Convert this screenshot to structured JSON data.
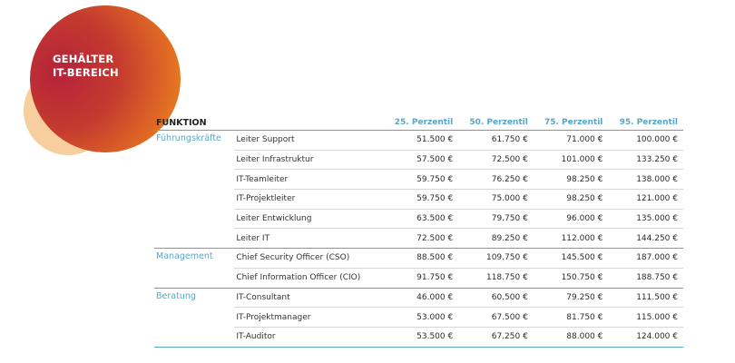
{
  "header": {
    "title_line1": "GEHÄLTER",
    "title_line2": "IT-BEREICH"
  },
  "table": {
    "columns": [
      "FUNKTION",
      "25. Perzentil",
      "50. Perzentil",
      "75. Perzentil",
      "95. Perzentil"
    ],
    "groups": [
      {
        "category": "Führungskräfte",
        "rows": [
          {
            "name": "Leiter Support",
            "values": [
              "51.500 €",
              "61.750 €",
              "71.000 €",
              "100.000 €"
            ]
          },
          {
            "name": "Leiter Infrastruktur",
            "values": [
              "57.500 €",
              "72.500 €",
              "101.000 €",
              "133.250 €"
            ]
          },
          {
            "name": "IT-Teamleiter",
            "values": [
              "59.750 €",
              "76.250 €",
              "98.250 €",
              "138.000 €"
            ]
          },
          {
            "name": "IT-Projektleiter",
            "values": [
              "59.750 €",
              "75.000 €",
              "98.250 €",
              "121.000 €"
            ]
          },
          {
            "name": "Leiter Entwicklung",
            "values": [
              "63.500 €",
              "79.750 €",
              "96.000 €",
              "135.000 €"
            ]
          },
          {
            "name": "Leiter IT",
            "values": [
              "72.500 €",
              "89.250 €",
              "112.000 €",
              "144.250 €"
            ]
          }
        ]
      },
      {
        "category": "Management",
        "rows": [
          {
            "name": "Chief Security Officer (CSO)",
            "values": [
              "88.500 €",
              "109.750 €",
              "145.500 €",
              "187.000 €"
            ]
          },
          {
            "name": "Chief Information Officer (CIO)",
            "values": [
              "91.750 €",
              "118.750 €",
              "150.750 €",
              "188.750 €"
            ]
          }
        ]
      },
      {
        "category": "Beratung",
        "rows": [
          {
            "name": "IT-Consultant",
            "values": [
              "46.000 €",
              "60.500 €",
              "79.250 €",
              "111.500 €"
            ]
          },
          {
            "name": "IT-Projektmanager",
            "values": [
              "53.000 €",
              "67.500 €",
              "81.750 €",
              "115.000 €"
            ]
          },
          {
            "name": "IT-Auditor",
            "values": [
              "53.500 €",
              "67.250 €",
              "88.000 €",
              "124.000 €"
            ]
          }
        ]
      }
    ]
  },
  "colors": {
    "accent": "#5aa6c9",
    "circle_red": "#b5233a",
    "circle_orange": "#f0921d",
    "circle_peach": "#f7cf9f"
  }
}
